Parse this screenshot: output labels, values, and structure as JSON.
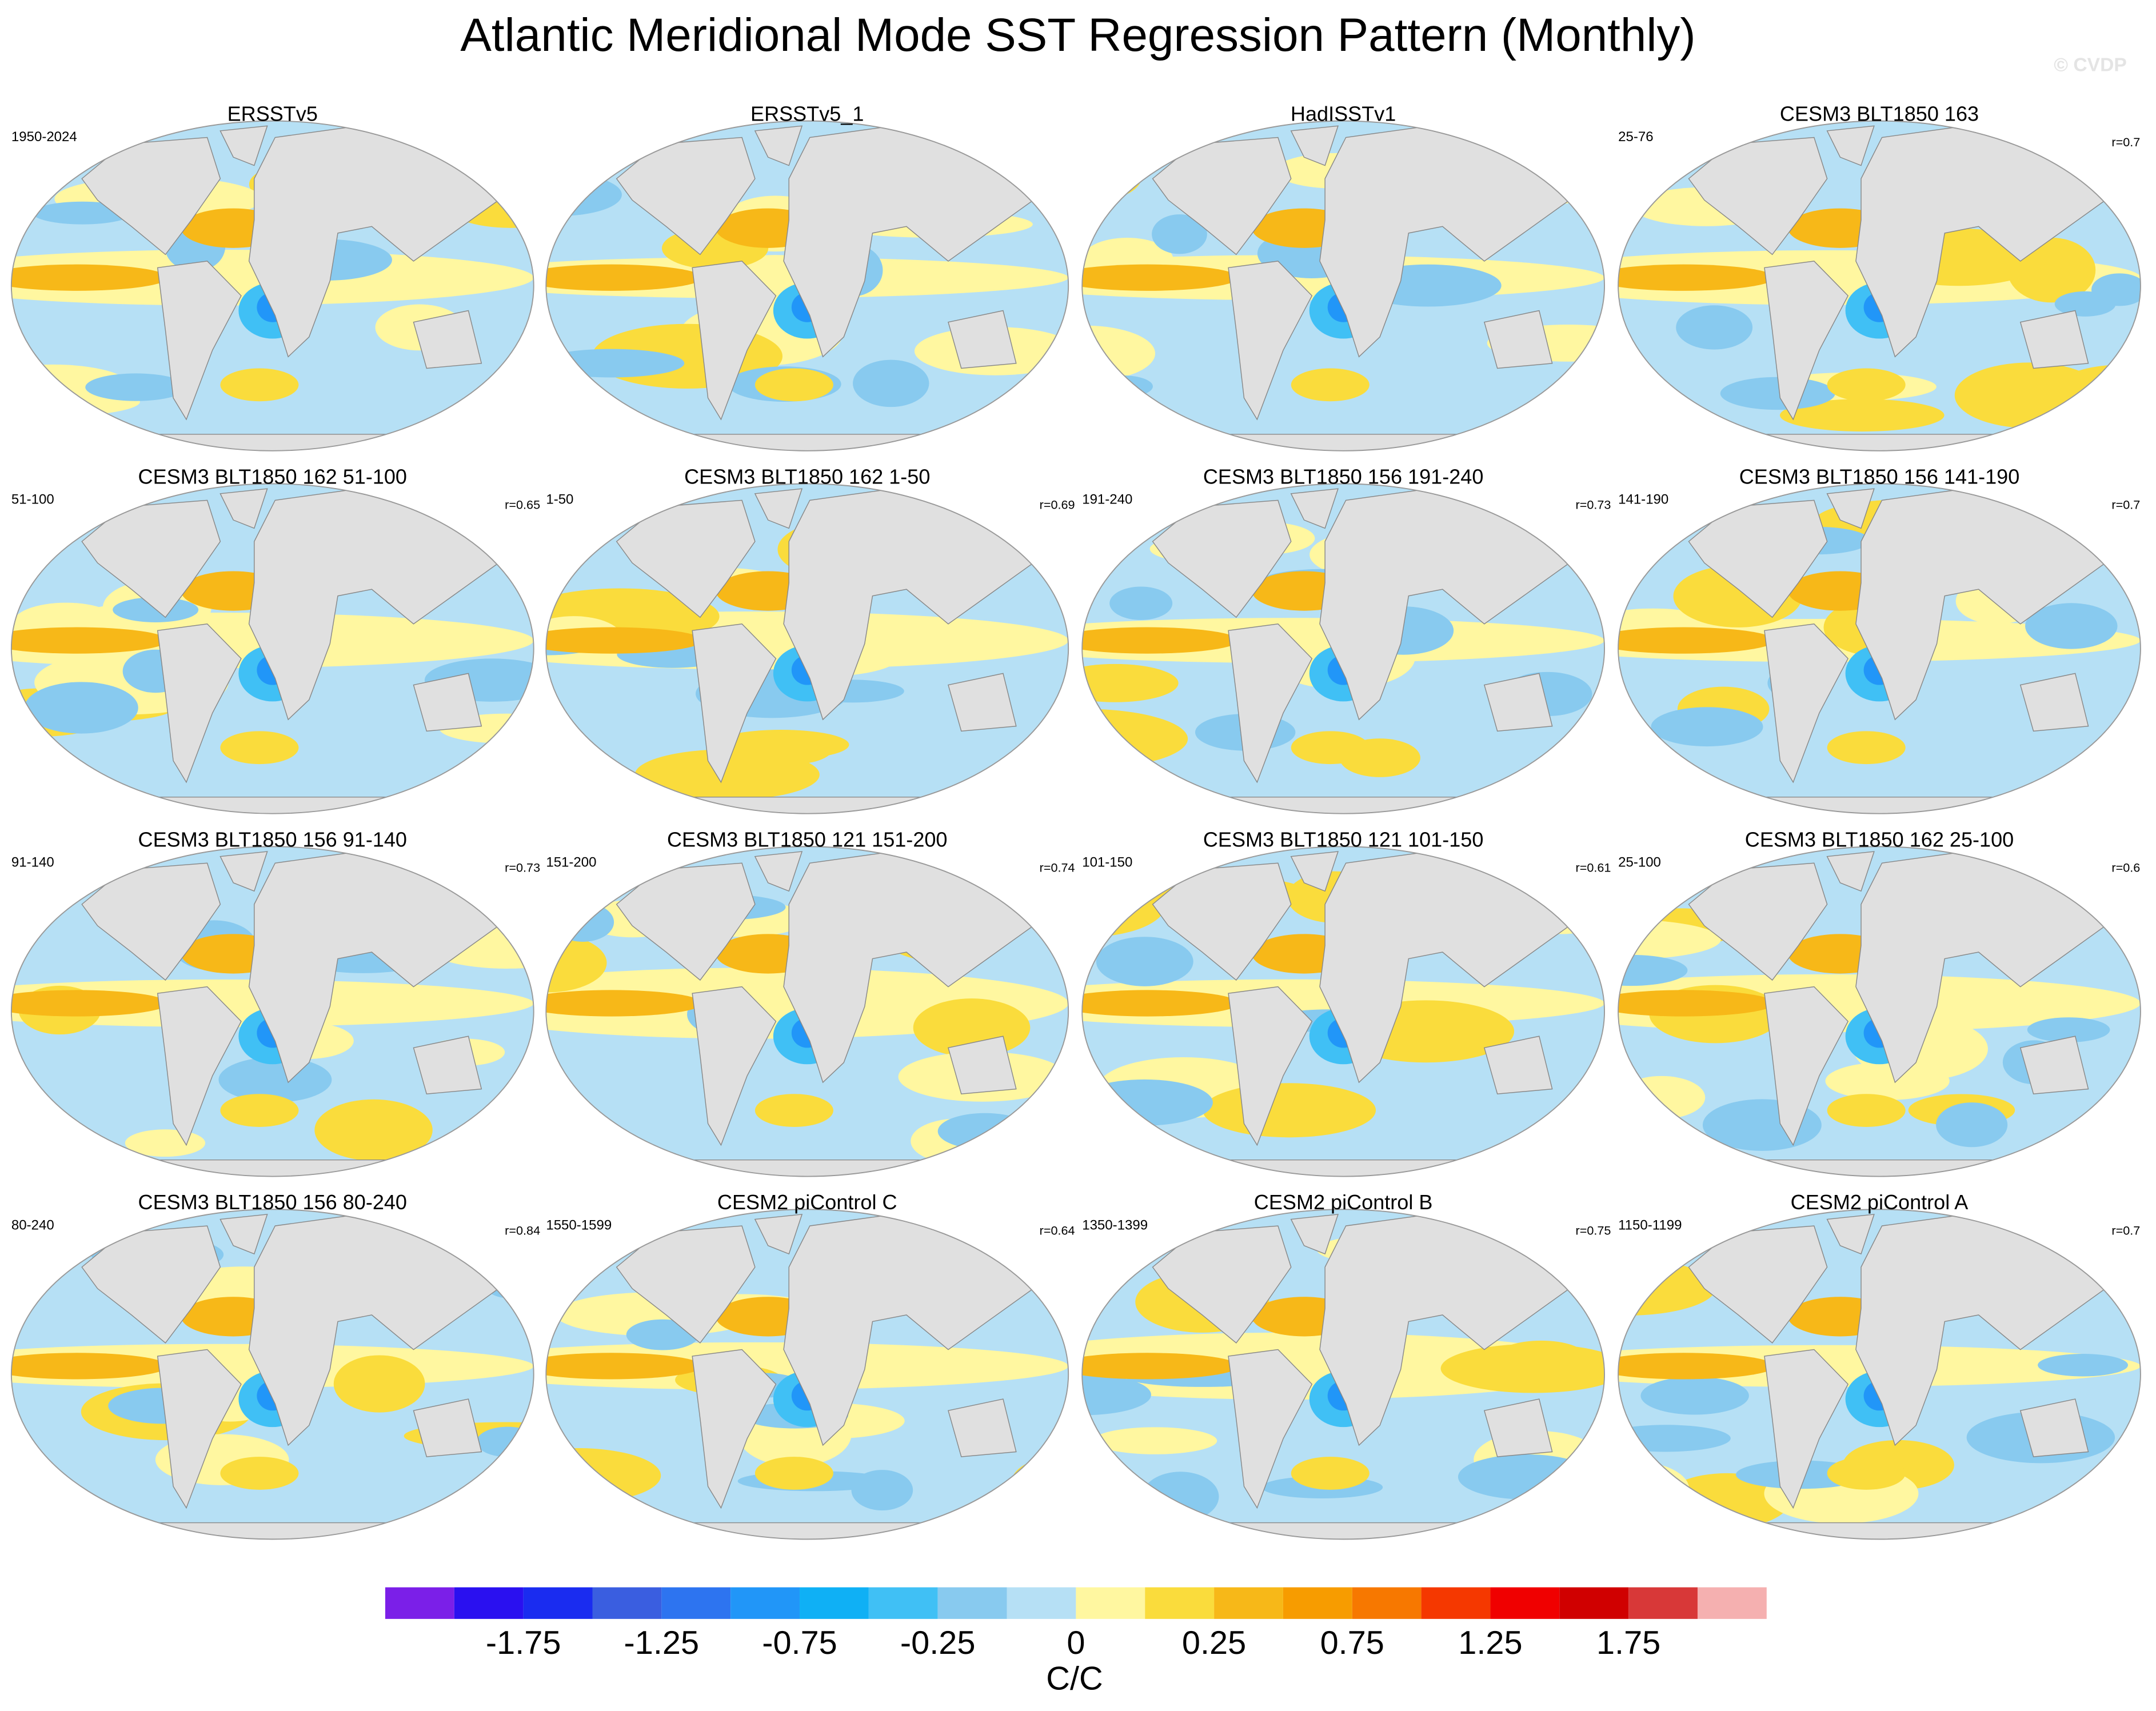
{
  "title": "Atlantic Meridional Mode SST Regression Pattern (Monthly)",
  "watermark": "© CVDP",
  "panels": [
    {
      "title": "ERSSTv5",
      "left": "1950-2024"
    },
    {
      "title": "ERSSTv5_1"
    },
    {
      "title": "HadISSTv1"
    },
    {
      "title": "CESM3 BLT1850 163",
      "left": "25-76",
      "right": "r=0.7"
    },
    {
      "title": "CESM3 BLT1850 162 51-100",
      "left": "51-100",
      "right": "r=0.65"
    },
    {
      "title": "CESM3 BLT1850 162 1-50",
      "left": "1-50",
      "right": "r=0.69"
    },
    {
      "title": "CESM3 BLT1850 156 191-240",
      "left": "191-240",
      "right": "r=0.73"
    },
    {
      "title": "CESM3 BLT1850 156 141-190",
      "left": "141-190",
      "right": "r=0.7"
    },
    {
      "title": "CESM3 BLT1850 156 91-140",
      "left": "91-140",
      "right": "r=0.73"
    },
    {
      "title": "CESM3 BLT1850 121 151-200",
      "left": "151-200",
      "right": "r=0.74"
    },
    {
      "title": "CESM3 BLT1850 121 101-150",
      "left": "101-150",
      "right": "r=0.61"
    },
    {
      "title": "CESM3 BLT1850 162 25-100",
      "left": "25-100",
      "right": "r=0.6"
    },
    {
      "title": "CESM3 BLT1850 156 80-240",
      "left": "80-240",
      "right": "r=0.84"
    },
    {
      "title": "CESM2 piControl C",
      "left": "1550-1599",
      "right": "r=0.64"
    },
    {
      "title": "CESM2 piControl B",
      "left": "1350-1399",
      "right": "r=0.75"
    },
    {
      "title": "CESM2 piControl A",
      "left": "1150-1199",
      "right": "r=0.7"
    }
  ],
  "colorbar": {
    "colors": [
      "#7b1fe8",
      "#2a10f0",
      "#1a2cf0",
      "#3a5ee0",
      "#2d74f0",
      "#2196f8",
      "#0fb0f5",
      "#40c0f5",
      "#88caef",
      "#b6e0f5",
      "#fff7a0",
      "#fadc3c",
      "#f7b818",
      "#f79c00",
      "#f77800",
      "#f53800",
      "#f00000",
      "#d00000",
      "#d83838",
      "#f5b0b0"
    ],
    "ticks": [
      -1.75,
      -1.25,
      -0.75,
      -0.25,
      0,
      0.25,
      0.75,
      1.25,
      1.75
    ],
    "label": "C/C"
  }
}
